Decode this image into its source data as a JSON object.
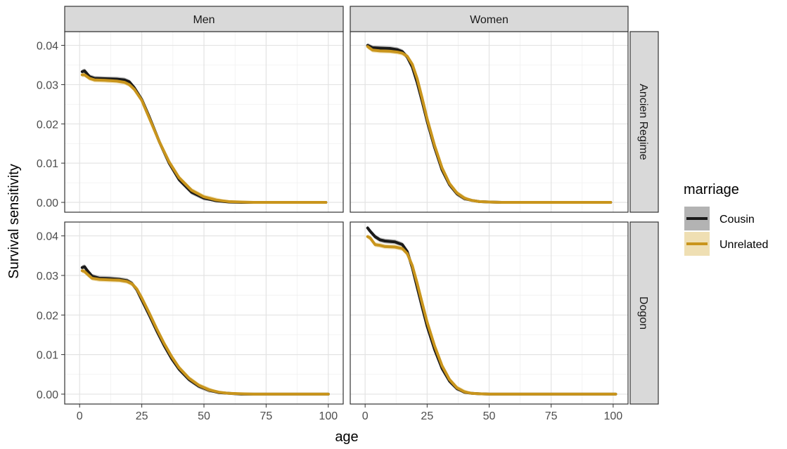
{
  "chart_data": {
    "type": "line",
    "xlabel": "age",
    "ylabel": "Survival sensitivity",
    "xlim": [
      -6,
      106
    ],
    "ylim": [
      -0.0025,
      0.0435
    ],
    "x_ticks": [
      0,
      25,
      50,
      75,
      100
    ],
    "x_tick_labels": [
      "0",
      "25",
      "50",
      "75",
      "100"
    ],
    "y_ticks": [
      0.0,
      0.01,
      0.02,
      0.03,
      0.04
    ],
    "y_tick_labels": [
      "0.00",
      "0.01",
      "0.02",
      "0.03",
      "0.04"
    ],
    "grid": true,
    "legend": {
      "title": "marriage",
      "position": "right",
      "entries": [
        {
          "name": "Cousin",
          "color": "#1a1a1a",
          "ribbon": "#a6a6a6"
        },
        {
          "name": "Unrelated",
          "color": "#c9951c",
          "ribbon": "#ecd9a6"
        }
      ]
    },
    "facet_columns": [
      "Men",
      "Women"
    ],
    "facet_rows": [
      "Ancien Regime",
      "Dogon"
    ],
    "panels": [
      {
        "column": "Men",
        "row": "Ancien Regime",
        "series": [
          {
            "name": "Cousin",
            "x": [
              1,
              2,
              4,
              6,
              10,
              15,
              18,
              20,
              22,
              25,
              28,
              32,
              36,
              40,
              45,
              50,
              55,
              60,
              65,
              70,
              80,
              90,
              99
            ],
            "y": [
              0.0333,
              0.0335,
              0.032,
              0.0316,
              0.0315,
              0.0314,
              0.0312,
              0.0307,
              0.0292,
              0.0262,
              0.0218,
              0.0155,
              0.01,
              0.0058,
              0.0026,
              0.0011,
              0.0004,
              0.0001,
              0.0,
              0.0,
              0.0,
              0.0,
              0.0
            ]
          },
          {
            "name": "Unrelated",
            "x": [
              1,
              2,
              4,
              6,
              10,
              15,
              18,
              20,
              22,
              25,
              28,
              32,
              36,
              40,
              45,
              50,
              55,
              60,
              65,
              70,
              80,
              90,
              99
            ],
            "y": [
              0.0325,
              0.0325,
              0.0316,
              0.0312,
              0.0311,
              0.0309,
              0.0306,
              0.03,
              0.0288,
              0.026,
              0.0215,
              0.0155,
              0.0103,
              0.0063,
              0.0031,
              0.0014,
              0.0006,
              0.0002,
              0.0001,
              0.0,
              0.0,
              0.0,
              0.0
            ]
          }
        ]
      },
      {
        "column": "Women",
        "row": "Ancien Regime",
        "series": [
          {
            "name": "Cousin",
            "x": [
              1,
              3,
              6,
              10,
              13,
              15,
              17,
              19,
              21,
              23,
              25,
              28,
              31,
              34,
              37,
              40,
              43,
              46,
              50,
              55,
              60,
              70,
              80,
              90,
              99
            ],
            "y": [
              0.04,
              0.0394,
              0.0393,
              0.0392,
              0.0389,
              0.0384,
              0.037,
              0.0345,
              0.0305,
              0.0257,
              0.0207,
              0.014,
              0.0083,
              0.0045,
              0.0022,
              0.001,
              0.0005,
              0.0002,
              0.0001,
              0.0,
              0.0,
              0.0,
              0.0,
              0.0,
              0.0
            ]
          },
          {
            "name": "Unrelated",
            "x": [
              1,
              3,
              6,
              10,
              13,
              15,
              17,
              19,
              21,
              23,
              25,
              28,
              31,
              34,
              37,
              40,
              43,
              46,
              50,
              55,
              60,
              70,
              80,
              90,
              99
            ],
            "y": [
              0.0397,
              0.0388,
              0.0386,
              0.0385,
              0.0383,
              0.038,
              0.0372,
              0.0352,
              0.0315,
              0.0265,
              0.0213,
              0.0145,
              0.0088,
              0.0048,
              0.0024,
              0.0011,
              0.0005,
              0.0002,
              0.0001,
              0.0,
              0.0,
              0.0,
              0.0,
              0.0,
              0.0
            ]
          }
        ]
      },
      {
        "column": "Men",
        "row": "Dogon",
        "series": [
          {
            "name": "Cousin",
            "x": [
              1,
              2,
              3,
              5,
              8,
              12,
              16,
              19,
              21,
              23,
              25,
              28,
              31,
              34,
              37,
              40,
              44,
              48,
              52,
              56,
              60,
              65,
              70,
              80,
              90,
              100
            ],
            "y": [
              0.032,
              0.0322,
              0.0313,
              0.0298,
              0.0293,
              0.0292,
              0.029,
              0.0287,
              0.028,
              0.0264,
              0.0238,
              0.02,
              0.016,
              0.0123,
              0.009,
              0.0063,
              0.0037,
              0.002,
              0.001,
              0.0004,
              0.0002,
              0.0,
              0.0,
              0.0,
              0.0,
              0.0
            ]
          },
          {
            "name": "Unrelated",
            "x": [
              1,
              2,
              3,
              5,
              8,
              12,
              16,
              19,
              21,
              23,
              25,
              28,
              31,
              34,
              37,
              40,
              44,
              48,
              52,
              56,
              60,
              65,
              70,
              80,
              90,
              100
            ],
            "y": [
              0.0312,
              0.031,
              0.0304,
              0.0293,
              0.029,
              0.0289,
              0.0288,
              0.0285,
              0.0279,
              0.0266,
              0.0243,
              0.0205,
              0.0165,
              0.0128,
              0.0095,
              0.0067,
              0.004,
              0.0022,
              0.0011,
              0.0005,
              0.0002,
              0.0001,
              0.0,
              0.0,
              0.0,
              0.0
            ]
          }
        ]
      },
      {
        "column": "Women",
        "row": "Dogon",
        "series": [
          {
            "name": "Cousin",
            "x": [
              1,
              2,
              4,
              6,
              8,
              12,
              15,
              17,
              19,
              21,
              23,
              25,
              28,
              31,
              34,
              37,
              40,
              43,
              46,
              50,
              55,
              60,
              70,
              80,
              90,
              101
            ],
            "y": [
              0.042,
              0.0412,
              0.0398,
              0.039,
              0.0387,
              0.0385,
              0.0378,
              0.036,
              0.032,
              0.027,
              0.022,
              0.0172,
              0.0113,
              0.0065,
              0.0033,
              0.0014,
              0.0005,
              0.0002,
              0.0001,
              0.0,
              0.0,
              0.0,
              0.0,
              0.0,
              0.0,
              0.0
            ]
          },
          {
            "name": "Unrelated",
            "x": [
              1,
              2,
              4,
              6,
              8,
              12,
              15,
              17,
              19,
              21,
              23,
              25,
              28,
              31,
              34,
              37,
              40,
              43,
              46,
              50,
              55,
              60,
              70,
              80,
              90,
              101
            ],
            "y": [
              0.0398,
              0.0395,
              0.0378,
              0.0376,
              0.0373,
              0.0372,
              0.0368,
              0.0355,
              0.0325,
              0.028,
              0.023,
              0.0182,
              0.0122,
              0.0072,
              0.0037,
              0.0016,
              0.0006,
              0.0002,
              0.0001,
              0.0,
              0.0,
              0.0,
              0.0,
              0.0,
              0.0,
              0.0
            ]
          }
        ]
      }
    ]
  }
}
